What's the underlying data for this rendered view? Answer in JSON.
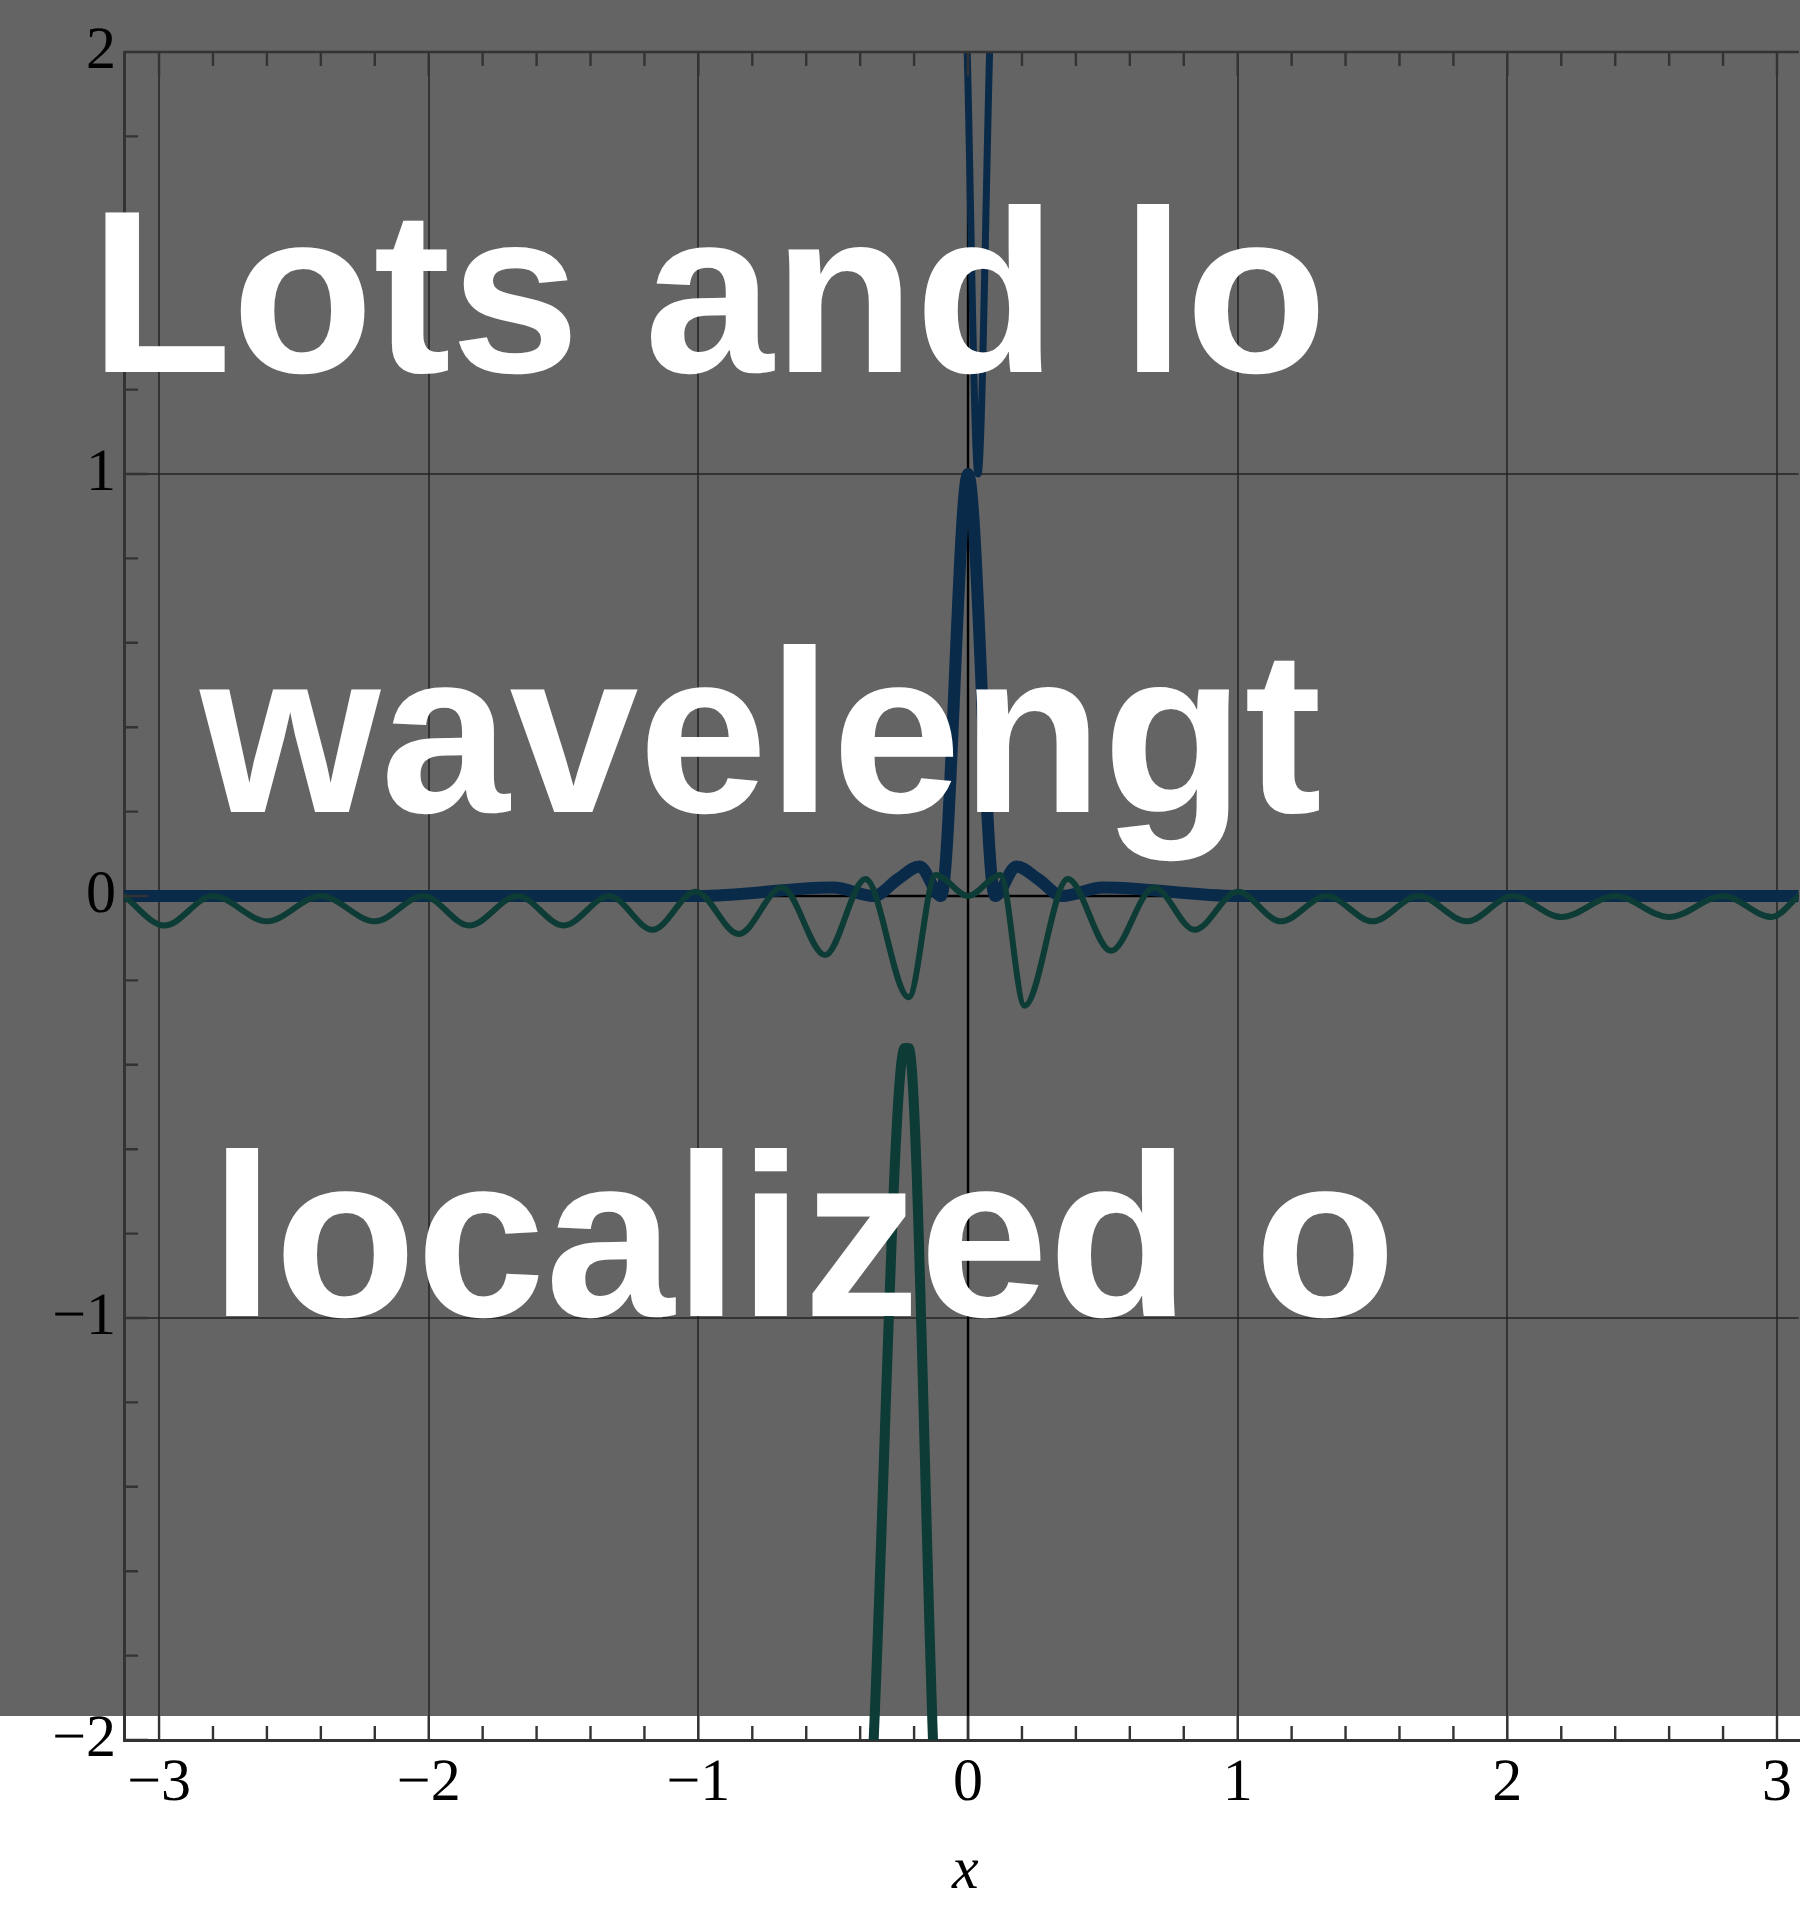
{
  "chart_data": {
    "type": "line",
    "annotations": [
      "Lots and lo",
      "wavelengt",
      "localized o"
    ],
    "xlabel": "x",
    "xlim": [
      -3.13,
      3.08
    ],
    "ylim": [
      -2,
      2
    ],
    "xticks": [
      -3,
      {
        "value": -2.8,
        "label": null
      },
      {
        "value": -2.6,
        "label": null
      },
      {
        "value": -2.4,
        "label": null
      },
      {
        "value": -2.2,
        "label": null
      },
      -2,
      {
        "value": -1.8,
        "label": null
      },
      {
        "value": -1.6,
        "label": null
      },
      {
        "value": -1.4,
        "label": null
      },
      {
        "value": -1.2,
        "label": null
      },
      -1,
      {
        "value": -0.8,
        "label": null
      },
      {
        "value": -0.6,
        "label": null
      },
      {
        "value": -0.4,
        "label": null
      },
      {
        "value": -0.2,
        "label": null
      },
      0,
      {
        "value": 0.2,
        "label": null
      },
      {
        "value": 0.4,
        "label": null
      },
      {
        "value": 0.6,
        "label": null
      },
      {
        "value": 0.8,
        "label": null
      },
      1,
      {
        "value": 1.2,
        "label": null
      },
      {
        "value": 1.4,
        "label": null
      },
      {
        "value": 1.6,
        "label": null
      },
      {
        "value": 1.8,
        "label": null
      },
      2,
      {
        "value": 2.2,
        "label": null
      },
      {
        "value": 2.4,
        "label": null
      },
      {
        "value": 2.6,
        "label": null
      },
      {
        "value": 2.8,
        "label": null
      },
      3
    ],
    "yticks": [
      -2,
      {
        "value": -1.8,
        "label": null
      },
      {
        "value": -1.6,
        "label": null
      },
      {
        "value": -1.4,
        "label": null
      },
      {
        "value": -1.2,
        "label": null
      },
      -1,
      {
        "value": -0.8,
        "label": null
      },
      {
        "value": -0.6,
        "label": null
      },
      {
        "value": -0.4,
        "label": null
      },
      {
        "value": -0.2,
        "label": null
      },
      0,
      {
        "value": 0.2,
        "label": null
      },
      {
        "value": 0.4,
        "label": null
      },
      {
        "value": 0.6,
        "label": null
      },
      {
        "value": 0.8,
        "label": null
      },
      1,
      {
        "value": 1.2,
        "label": null
      },
      {
        "value": 1.4,
        "label": null
      },
      {
        "value": 1.6,
        "label": null
      },
      {
        "value": 1.8,
        "label": null
      },
      2
    ],
    "grid": true,
    "legend": false,
    "marker": "none",
    "line_style": "solid",
    "series": [
      {
        "color": "#0d3b36",
        "x": [
          -3.13,
          -2.98,
          -2.8,
          -2.6,
          -2.4,
          -2.2,
          -2.02,
          -1.85,
          -1.67,
          -1.5,
          -1.33,
          -1.17,
          -1.01,
          -0.85,
          -0.69,
          -0.53,
          -0.38,
          -0.22,
          -0.12,
          0,
          0.12,
          0.21,
          0.37,
          0.53,
          0.69,
          0.84,
          1.0,
          1.16,
          1.33,
          1.5,
          1.67,
          1.85,
          2.02,
          2.2,
          2.4,
          2.6,
          2.8,
          2.98,
          3.08
        ],
        "values": [
          0,
          -0.07,
          0,
          -0.06,
          0,
          -0.06,
          0,
          -0.07,
          0,
          -0.07,
          0,
          -0.08,
          0.01,
          -0.09,
          0.02,
          -0.14,
          0.04,
          -0.24,
          0.05,
          0,
          0.05,
          -0.26,
          0.04,
          -0.13,
          0.02,
          -0.08,
          0.01,
          -0.06,
          0,
          -0.06,
          0,
          -0.06,
          0,
          -0.05,
          0,
          -0.05,
          0,
          -0.05,
          0
        ]
      },
      {
        "color": "#0d3b36",
        "x": [
          -0.35,
          -0.235,
          -0.22,
          -0.13
        ],
        "values": [
          -2,
          -0.36,
          -0.36,
          -2
        ]
      },
      {
        "color": "#0a2a4a",
        "x": [
          -3.13,
          -1.0,
          -0.5,
          -0.35,
          -0.26,
          -0.18,
          -0.1,
          0,
          0.1,
          0.18,
          0.26,
          0.35,
          0.5,
          1.0,
          3.08
        ],
        "values": [
          0,
          0,
          0.02,
          0,
          0.04,
          0.07,
          0,
          1,
          0,
          0.07,
          0.04,
          0,
          0.02,
          0,
          0
        ]
      },
      {
        "color": "#0a2a4a",
        "x": [
          -0.003,
          0.037,
          0.08
        ],
        "values": [
          2,
          1.0,
          2
        ]
      }
    ]
  }
}
